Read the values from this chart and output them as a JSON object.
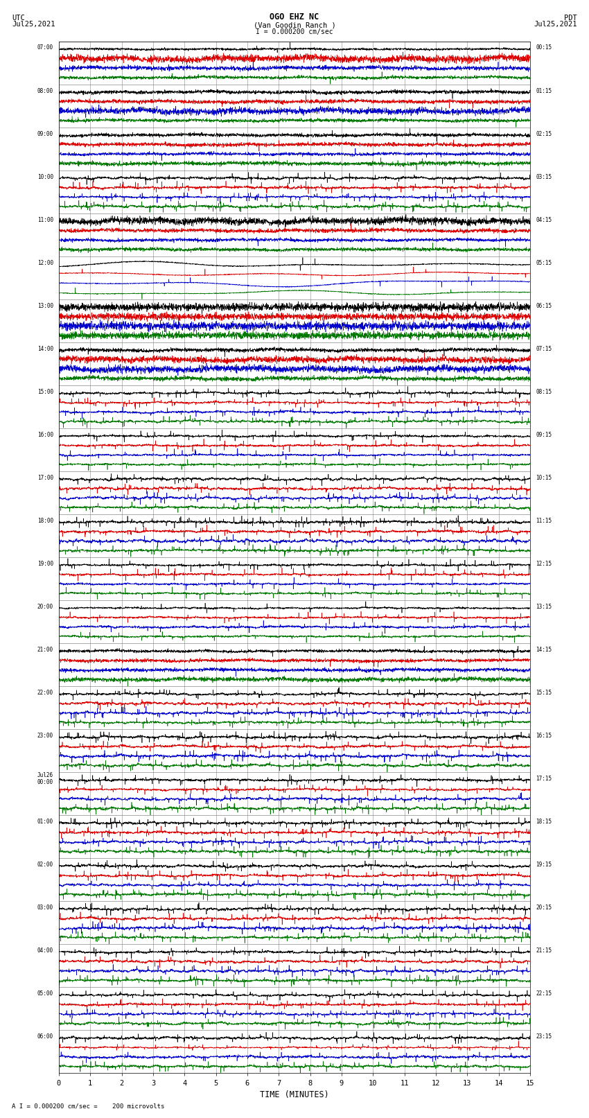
{
  "title_line1": "OGO EHZ NC",
  "title_line2": "(Van Goodin Ranch )",
  "scale_text": "I = 0.000200 cm/sec",
  "footer_text": "A I = 0.000200 cm/sec =    200 microvolts",
  "utc_label": "UTC",
  "utc_date": "Jul25,2021",
  "pdt_label": "PDT",
  "pdt_date": "Jul25,2021",
  "xlabel": "TIME (MINUTES)",
  "xlim": [
    0,
    15
  ],
  "bg_color": "#ffffff",
  "rows": [
    {
      "utc": "07:00",
      "pdt": "00:15",
      "style": "flat4",
      "amps": [
        0.25,
        0.22,
        0.18,
        0.08
      ]
    },
    {
      "utc": "08:00",
      "pdt": "01:15",
      "style": "flat4",
      "amps": [
        0.12,
        0.1,
        0.14,
        0.1
      ]
    },
    {
      "utc": "09:00",
      "pdt": "02:15",
      "style": "flat4",
      "amps": [
        0.08,
        0.28,
        0.18,
        0.1
      ]
    },
    {
      "utc": "10:00",
      "pdt": "03:15",
      "style": "active3",
      "amps": [
        0.55,
        0.4,
        0.18,
        0.12
      ]
    },
    {
      "utc": "11:00",
      "pdt": "04:15",
      "style": "flat4",
      "amps": [
        0.12,
        0.12,
        0.22,
        0.08
      ]
    },
    {
      "utc": "12:00",
      "pdt": "05:15",
      "style": "wavy",
      "amps": [
        0.45,
        0.4,
        0.35,
        0.12
      ]
    },
    {
      "utc": "13:00",
      "pdt": "06:15",
      "style": "vflat",
      "amps": [
        0.04,
        0.04,
        0.04,
        0.25
      ]
    },
    {
      "utc": "14:00",
      "pdt": "07:15",
      "style": "vflat2",
      "amps": [
        0.04,
        0.04,
        0.3,
        0.04
      ]
    },
    {
      "utc": "15:00",
      "pdt": "08:15",
      "style": "active2",
      "amps": [
        0.55,
        0.3,
        0.12,
        0.35
      ]
    },
    {
      "utc": "16:00",
      "pdt": "09:15",
      "style": "spiky",
      "amps": [
        0.35,
        0.45,
        0.35,
        0.25
      ]
    },
    {
      "utc": "17:00",
      "pdt": "10:15",
      "style": "vactive",
      "amps": [
        0.65,
        0.7,
        0.65,
        0.6
      ]
    },
    {
      "utc": "18:00",
      "pdt": "11:15",
      "style": "active2",
      "amps": [
        0.6,
        0.55,
        0.15,
        0.12
      ]
    },
    {
      "utc": "19:00",
      "pdt": "12:15",
      "style": "spiky2",
      "amps": [
        0.15,
        0.12,
        0.35,
        0.08
      ]
    },
    {
      "utc": "20:00",
      "pdt": "13:15",
      "style": "spiky3",
      "amps": [
        0.12,
        0.08,
        0.3,
        0.08
      ]
    },
    {
      "utc": "21:00",
      "pdt": "14:15",
      "style": "flat_dot",
      "amps": [
        0.06,
        0.06,
        0.06,
        0.06
      ]
    },
    {
      "utc": "22:00",
      "pdt": "15:15",
      "style": "active4",
      "amps": [
        0.15,
        0.12,
        0.5,
        0.35
      ]
    },
    {
      "utc": "23:00",
      "pdt": "16:15",
      "style": "active5",
      "amps": [
        0.35,
        0.2,
        0.35,
        0.2
      ]
    },
    {
      "utc": "Jul26\n00:00",
      "pdt": "17:15",
      "style": "active6",
      "amps": [
        0.12,
        0.55,
        0.25,
        0.08
      ]
    },
    {
      "utc": "01:00",
      "pdt": "18:15",
      "style": "active7",
      "amps": [
        0.2,
        0.12,
        0.35,
        0.18
      ]
    },
    {
      "utc": "02:00",
      "pdt": "19:15",
      "style": "vactive2",
      "amps": [
        0.55,
        0.5,
        0.4,
        0.55
      ]
    },
    {
      "utc": "03:00",
      "pdt": "20:15",
      "style": "vactive3",
      "amps": [
        0.6,
        0.55,
        0.5,
        0.6
      ]
    },
    {
      "utc": "04:00",
      "pdt": "21:15",
      "style": "active8",
      "amps": [
        0.12,
        0.1,
        0.25,
        0.35
      ]
    },
    {
      "utc": "05:00",
      "pdt": "22:15",
      "style": "active9",
      "amps": [
        0.25,
        0.3,
        0.12,
        0.18
      ]
    },
    {
      "utc": "06:00",
      "pdt": "23:15",
      "style": "active10",
      "amps": [
        0.18,
        0.15,
        0.25,
        0.3
      ]
    }
  ],
  "colors": {
    "black": "#000000",
    "red": "#dd0000",
    "blue": "#0000cc",
    "green": "#007700"
  }
}
